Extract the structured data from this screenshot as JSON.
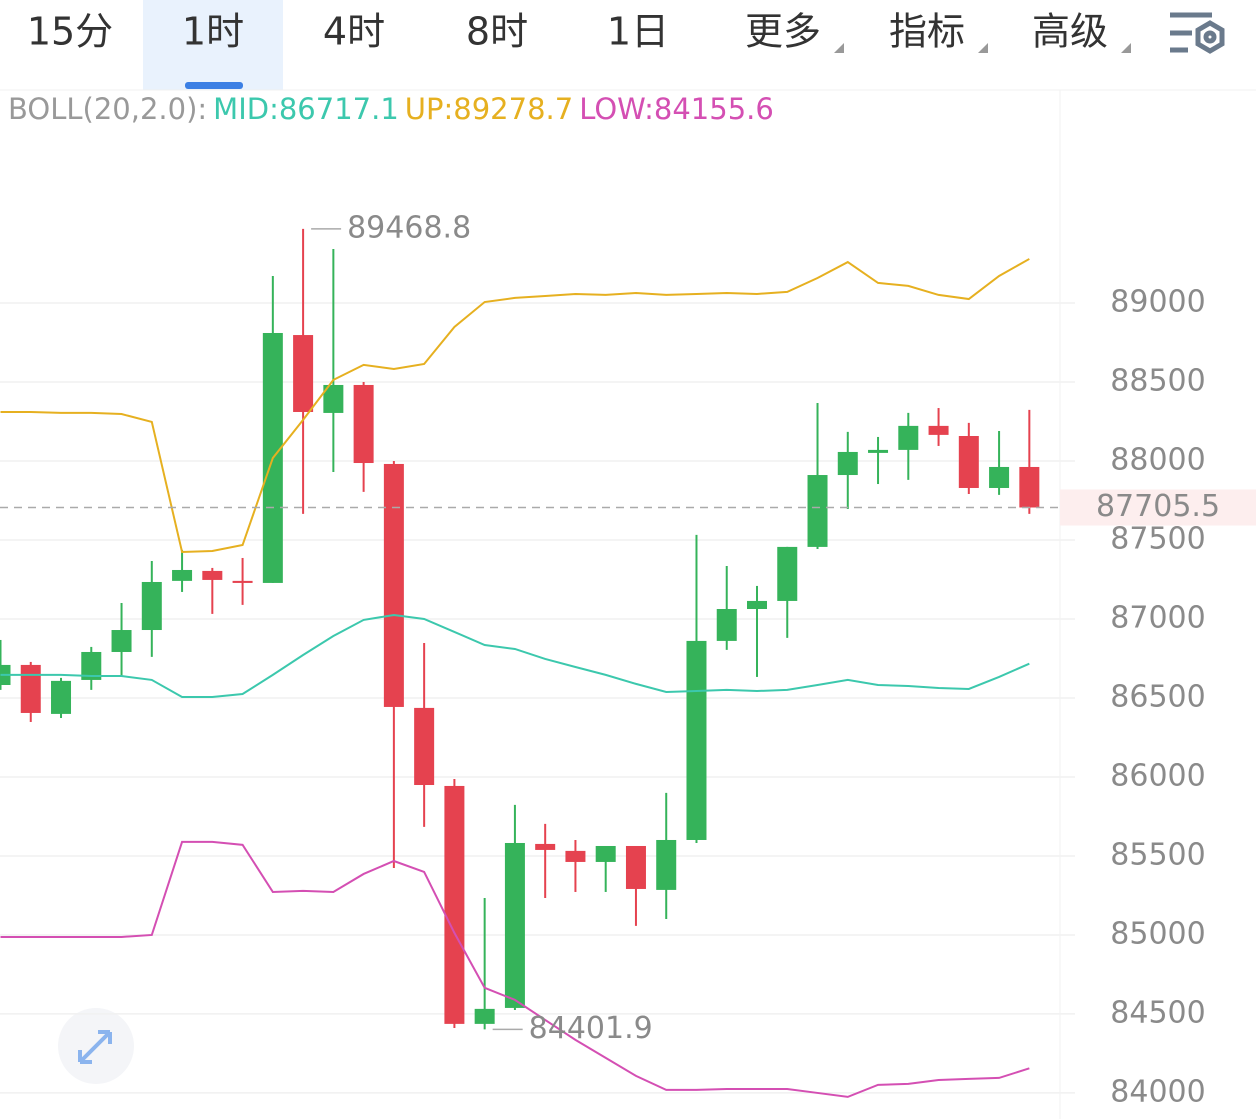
{
  "tabs": [
    "15分",
    "1时",
    "4时",
    "8时",
    "1日",
    "更多",
    "指标",
    "高级"
  ],
  "selected_tab": 1,
  "chart_data": {
    "type": "candlestick",
    "indicator_label": "BOLL(20,2.0):",
    "up_color": "#35b35a",
    "down_color": "#e5424f",
    "open": [
      86582,
      86709,
      86399,
      86614,
      86791,
      86930,
      87241,
      87304,
      87241,
      87228,
      88797,
      88304,
      88481,
      87981,
      86437,
      85943,
      84437,
      84538,
      85576,
      85532,
      85462,
      85563,
      85285,
      85601,
      86861,
      87063,
      87114,
      87456,
      87911,
      88051,
      88070,
      88222,
      88158,
      87829,
      87962
    ],
    "high": [
      86867,
      86728,
      86627,
      86823,
      87101,
      87367,
      87437,
      87323,
      87386,
      89171,
      89468.8,
      89342,
      88500,
      88000,
      86848,
      85987,
      85234,
      85823,
      85703,
      85601,
      85563,
      85563,
      85899,
      87532,
      87335,
      87209,
      87456,
      88367,
      88184,
      88152,
      88304,
      88335,
      88241,
      88190,
      88323
    ],
    "low": [
      86551,
      86348,
      86373,
      86551,
      86633,
      86760,
      87171,
      87032,
      87089,
      87228,
      87665,
      87930,
      87804,
      85424,
      85684,
      84411,
      84401.9,
      84525,
      85234,
      85272,
      85272,
      85057,
      85101,
      85582,
      86804,
      86633,
      86880,
      87443,
      87696,
      87854,
      87880,
      88095,
      87791,
      87785,
      87665
    ],
    "close": [
      86709,
      86405,
      86608,
      86791,
      86930,
      87234,
      87310,
      87247,
      87228,
      88810,
      88310,
      88481,
      87987,
      86443,
      85949,
      84437,
      84532,
      85582,
      85538,
      85462,
      85563,
      85291,
      85601,
      86861,
      87063,
      87114,
      87456,
      87911,
      88057,
      88070,
      88222,
      88165,
      87829,
      87962,
      87705.5
    ],
    "series": [
      {
        "name": "MID:86717.1",
        "color": "#3cc8ad",
        "values": [
          86646,
          86646,
          86646,
          86639,
          86639,
          86614,
          86506,
          86506,
          86525,
          86646,
          86772,
          86892,
          86994,
          87025,
          87000,
          86918,
          86835,
          86810,
          86747,
          86696,
          86646,
          86589,
          86538,
          86544,
          86551,
          86544,
          86551,
          86582,
          86614,
          86582,
          86576,
          86563,
          86557,
          86633,
          86717.1
        ]
      },
      {
        "name": "UP:89278.7",
        "color": "#e6b020",
        "values": [
          88310,
          88310,
          88304,
          88304,
          88297,
          88247,
          87424,
          87430,
          87468,
          88019,
          88260,
          88513,
          88608,
          88582,
          88614,
          88848,
          89006,
          89032,
          89044,
          89057,
          89051,
          89063,
          89051,
          89057,
          89063,
          89057,
          89070,
          89158,
          89259,
          89127,
          89108,
          89051,
          89025,
          89171,
          89278.7
        ]
      },
      {
        "name": "LOW:84155.6",
        "color": "#d44fb3",
        "values": [
          84987,
          84987,
          84987,
          84987,
          84987,
          85000,
          85589,
          85589,
          85570,
          85272,
          85279,
          85272,
          85386,
          85468,
          85399,
          85013,
          84665,
          84589,
          84462,
          84336,
          84222,
          84108,
          84019,
          84019,
          84025,
          84025,
          84025,
          84000,
          83975,
          84051,
          84057,
          84082,
          84089,
          84095,
          84155.6
        ]
      }
    ],
    "max_price": 89468.8,
    "min_price": 84401.9,
    "last_price": 87705.5,
    "last_price_color": "#e5424f",
    "ylim": [
      83835,
      90348
    ],
    "yticks": [
      84000,
      84500,
      85000,
      85500,
      86000,
      86500,
      87000,
      87500,
      88000,
      88500,
      89000
    ],
    "grid": true
  }
}
